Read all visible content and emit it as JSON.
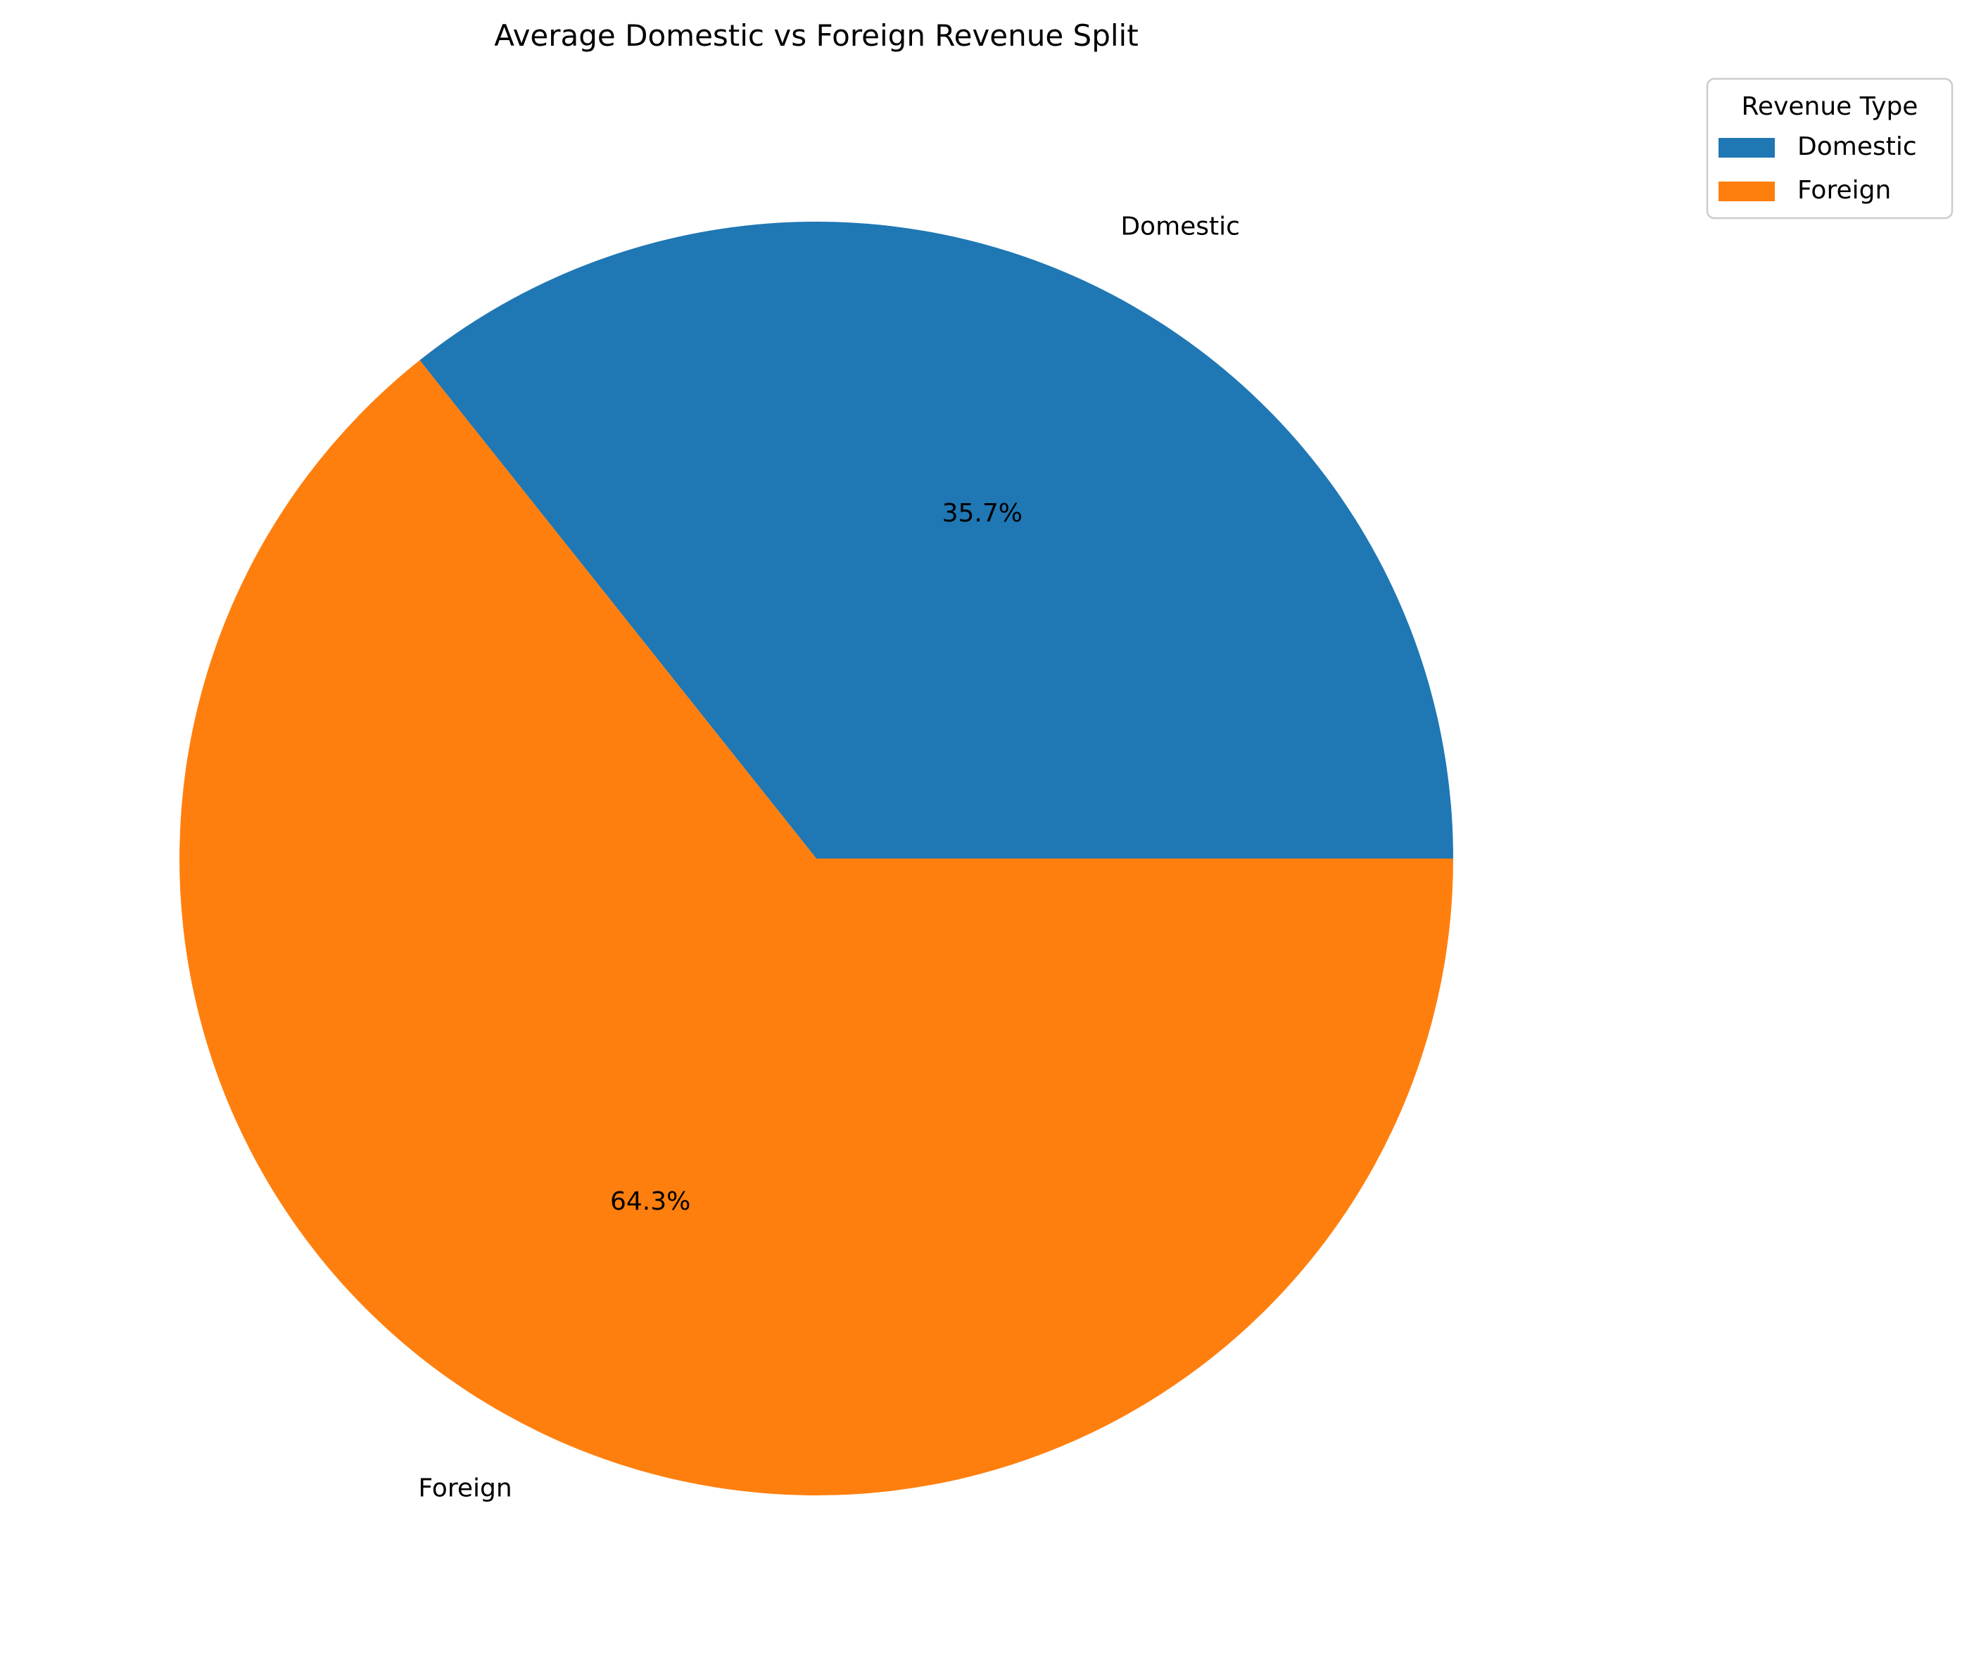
{
  "chart_data": {
    "type": "pie",
    "title": "Average Domestic vs Foreign Revenue Split",
    "categories": [
      "Domestic",
      "Foreign"
    ],
    "values": [
      35.7,
      64.3
    ],
    "value_labels": [
      "35.7%",
      "64.3%"
    ],
    "colors": [
      "#1f77b4",
      "#ff7f0e"
    ],
    "start_angle_deg": 0,
    "direction": "counterclockwise",
    "legend": {
      "title": "Revenue Type",
      "placement": "upper-right-outside"
    }
  }
}
